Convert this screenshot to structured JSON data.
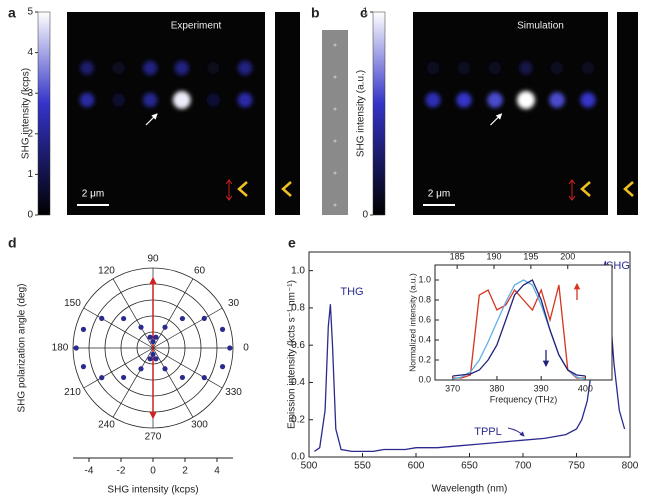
{
  "chart_data": [
    {
      "type": "image",
      "panel": "a",
      "title": "Experiment",
      "colorbar_label": "SHG intensity (kcps)",
      "clim": [
        0,
        5
      ],
      "cticks": [
        0,
        1,
        2,
        3,
        4,
        5
      ],
      "scale_bar": "2 μm",
      "rows": [
        [
          1.5,
          0.5,
          1.8,
          1.8,
          0.4,
          1.8
        ],
        [
          2.2,
          0.7,
          2.0,
          4.8,
          0.8,
          2.3
        ]
      ]
    },
    {
      "type": "strip",
      "panel": "b"
    },
    {
      "type": "image",
      "panel": "c",
      "title": "Simulation",
      "colorbar_label": "SHG intensity (a.u.)",
      "clim": [
        0,
        1
      ],
      "cticks": [
        0,
        1
      ],
      "scale_bar": "2 μm",
      "rows": [
        [
          0.1,
          0.1,
          0.1,
          0.2,
          0.1,
          0.1
        ],
        [
          0.5,
          0.55,
          0.6,
          1,
          0.6,
          0.55
        ]
      ]
    },
    {
      "type": "polar",
      "panel": "d",
      "xlabel": "SHG intensity (kcps)",
      "ylabel": "SHG polarization angle (deg)",
      "xlim": [
        -5,
        5
      ],
      "xticks": [
        -4,
        -2,
        0,
        2,
        4
      ],
      "angle_ticks": [
        0,
        30,
        60,
        90,
        120,
        150,
        180,
        210,
        240,
        270,
        300,
        330
      ],
      "series": [
        {
          "color": "#2b2b8f",
          "theta": [
            0,
            15,
            30,
            45,
            60,
            75,
            90,
            105,
            120,
            135,
            150,
            165,
            180,
            195,
            210,
            225,
            240,
            255,
            270,
            285,
            300,
            315,
            330,
            345
          ],
          "r": [
            4.8,
            4.5,
            3.7,
            2.6,
            1.5,
            0.7,
            0.4,
            0.7,
            1.5,
            2.6,
            3.7,
            4.5,
            4.8,
            4.5,
            3.7,
            2.6,
            1.5,
            0.7,
            0.4,
            0.7,
            1.5,
            2.6,
            3.7,
            4.5
          ]
        }
      ]
    },
    {
      "type": "line",
      "panel": "e",
      "xlabel": "Wavelength (nm)",
      "ylabel": "Emission intensity (kcts s⁻¹ nm⁻¹)",
      "xlim": [
        500,
        800
      ],
      "xticks": [
        500,
        550,
        600,
        650,
        700,
        750,
        800
      ],
      "ylim": [
        0,
        1.1
      ],
      "yticks": [
        {
          "value": 0,
          "label": "0.0"
        },
        0.2,
        0.4,
        0.6,
        0.8,
        {
          "value": 1,
          "label": "1.0"
        }
      ],
      "annotations": [
        "THG",
        "SHG",
        "TPPL"
      ],
      "x": [
        505,
        510,
        515,
        518,
        520,
        522,
        525,
        530,
        540,
        550,
        560,
        570,
        580,
        590,
        600,
        620,
        640,
        660,
        680,
        700,
        720,
        740,
        750,
        755,
        760,
        765,
        770,
        773,
        775,
        777,
        779,
        781,
        785,
        790,
        795
      ],
      "series": [
        {
          "color": "#2b2b8f",
          "values": [
            0.03,
            0.05,
            0.25,
            0.7,
            0.82,
            0.6,
            0.15,
            0.04,
            0.03,
            0.03,
            0.03,
            0.04,
            0.04,
            0.04,
            0.05,
            0.05,
            0.06,
            0.07,
            0.08,
            0.09,
            0.1,
            0.12,
            0.15,
            0.2,
            0.3,
            0.5,
            0.75,
            0.9,
            1.0,
            1.05,
            0.95,
            0.8,
            0.5,
            0.25,
            0.15
          ]
        }
      ],
      "inset": {
        "xlabel": "Frequency (THz)",
        "ylabel": "Normalized intensity (a.u.)",
        "xlim": [
          366,
          406
        ],
        "xticks": [
          370,
          380,
          390,
          400
        ],
        "x2lim": [
          182,
          206
        ],
        "x2ticks": [
          185,
          190,
          195,
          200
        ],
        "ylim": [
          0,
          1.15
        ],
        "yticks": [
          {
            "value": 0,
            "label": "0.0"
          },
          0.2,
          0.4,
          0.6,
          0.8,
          {
            "value": 1,
            "label": "1.0"
          }
        ],
        "x": [
          370,
          372,
          374,
          376,
          378,
          380,
          382,
          384,
          386,
          388,
          390,
          392,
          394,
          396,
          398,
          400
        ],
        "series": [
          {
            "color": "#d8341f",
            "values": [
              0.02,
              0.02,
              0.05,
              0.85,
              0.9,
              0.7,
              0.75,
              0.9,
              0.8,
              0.7,
              0.9,
              0.6,
              0.95,
              0.1,
              0.02,
              0.02
            ]
          },
          {
            "color": "#5fb0e6",
            "values": [
              0.01,
              0.03,
              0.08,
              0.2,
              0.38,
              0.58,
              0.78,
              0.95,
              1.0,
              0.95,
              0.75,
              0.5,
              0.25,
              0.1,
              0.03,
              0.01
            ]
          },
          {
            "color": "#22227a",
            "values": [
              0.04,
              0.05,
              0.06,
              0.1,
              0.2,
              0.35,
              0.6,
              0.85,
              0.95,
              1.0,
              0.8,
              0.5,
              0.25,
              0.1,
              0.05,
              0.04
            ]
          }
        ]
      }
    }
  ]
}
